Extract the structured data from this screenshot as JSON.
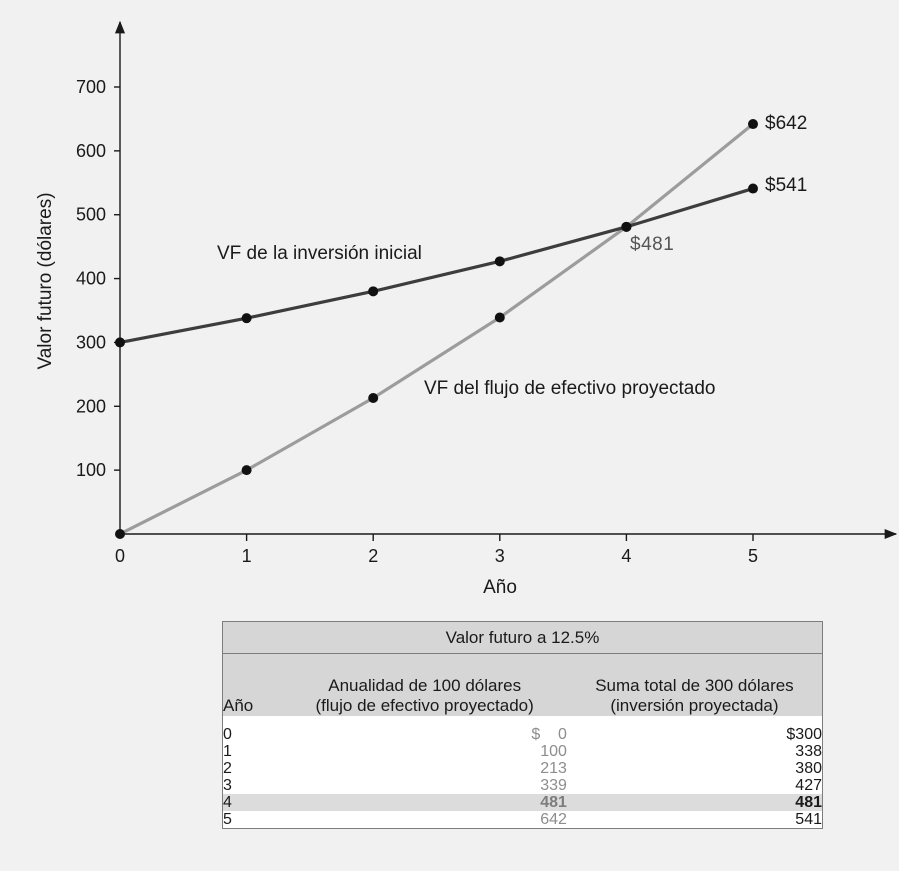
{
  "chart_data": {
    "type": "line",
    "xlabel": "Año",
    "ylabel": "Valor futuro (dólares)",
    "x": [
      0,
      1,
      2,
      3,
      4,
      5
    ],
    "xlim": [
      0,
      5.8
    ],
    "ylim": [
      0,
      760
    ],
    "xticks": [
      0,
      1,
      2,
      3,
      4,
      5
    ],
    "yticks": [
      100,
      200,
      300,
      400,
      500,
      600,
      700
    ],
    "series": [
      {
        "name": "VF de la inversión inicial",
        "values": [
          300,
          338,
          380,
          427,
          481,
          541
        ],
        "color": "#3d3d3d",
        "end_label": "$541"
      },
      {
        "name": "VF del flujo de efectivo proyectado",
        "values": [
          0,
          100,
          213,
          339,
          481,
          642
        ],
        "color": "#9c9c9c",
        "end_label": "$642"
      }
    ],
    "annotations": [
      {
        "text": "$481",
        "x": 4,
        "y": 481
      }
    ],
    "grid": false
  },
  "table": {
    "title": "Valor futuro a 12.5%",
    "col_year": "Año",
    "col_annuity_line1": "Anualidad de 100 dólares",
    "col_annuity_line2": "(flujo de efectivo proyectado)",
    "col_lump_line1": "Suma total de 300 dólares",
    "col_lump_line2": "(inversión proyectada)",
    "rows": [
      {
        "year": "0",
        "annuity": "$    0",
        "lump": "$300"
      },
      {
        "year": "1",
        "annuity": "100",
        "lump": "338"
      },
      {
        "year": "2",
        "annuity": "213",
        "lump": "380"
      },
      {
        "year": "3",
        "annuity": "339",
        "lump": "427"
      },
      {
        "year": "4",
        "annuity": "481",
        "lump": "481"
      },
      {
        "year": "5",
        "annuity": "642",
        "lump": "541"
      }
    ]
  }
}
